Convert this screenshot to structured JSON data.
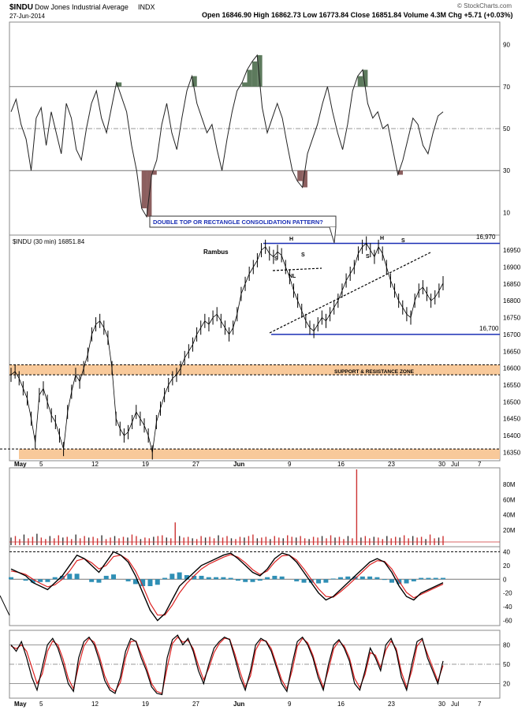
{
  "header": {
    "symbol": "$INDU",
    "name": "Dow Jones Industrial Average",
    "exchange": "INDX",
    "date": "27-Jun-2014",
    "ohlc": "Open 16846.90  High 16862.73  Low 16773.84  Close 16851.84  Volume 4.3M  Chg +5.71 (+0.03%)",
    "watermark": "© StockCharts.com",
    "price_label": "$INDU (30 min) 16851.84",
    "author": "Rambus"
  },
  "annotations": {
    "pattern_box": "DOUBLE TOP OR RECTANGLE CONSOLIDATION PATTERN?",
    "zone": "SUPPORT & RESISTANCE ZONE",
    "level_top": "16,970",
    "level_bottom": "16,700",
    "nl": "NL",
    "hs_letters": [
      "S",
      "H",
      "S",
      "S",
      "H",
      "S"
    ]
  },
  "x_axis": {
    "price_labels": [
      "May",
      "5",
      "12",
      "19",
      "27",
      "Jun",
      "9",
      "16",
      "23",
      "30",
      "Jul",
      "7"
    ],
    "bottom_labels": [
      "May",
      "5",
      "12",
      "19",
      "27",
      "Jun",
      "9",
      "16",
      "23",
      "30",
      "Jul",
      "7"
    ]
  },
  "chart_data": [
    {
      "type": "line",
      "panel": "rsi-top",
      "y_ticks": [
        "90",
        "70",
        "50",
        "30",
        "10"
      ],
      "ylim": [
        0,
        100
      ],
      "levels": [
        70,
        50,
        30
      ],
      "series": [
        {
          "values": [
            58,
            64,
            52,
            45,
            30,
            55,
            60,
            42,
            58,
            48,
            38,
            62,
            55,
            40,
            35,
            50,
            62,
            68,
            55,
            48,
            60,
            72,
            65,
            58,
            42,
            30,
            12,
            8,
            28,
            35,
            52,
            62,
            48,
            40,
            55,
            68,
            75,
            62,
            55,
            48,
            52,
            40,
            30,
            45,
            58,
            68,
            72,
            78,
            82,
            85,
            60,
            48,
            55,
            62,
            55,
            42,
            30,
            25,
            22,
            38,
            45,
            52,
            62,
            70,
            58,
            48,
            40,
            52,
            68,
            75,
            78,
            62,
            55,
            58,
            50,
            52,
            40,
            28,
            35,
            45,
            55,
            52,
            42,
            38,
            48,
            56,
            58
          ]
        }
      ]
    },
    {
      "type": "line",
      "panel": "price",
      "y_ticks": [
        "16950",
        "16900",
        "16850",
        "16800",
        "16750",
        "16700",
        "16650",
        "16600",
        "16550",
        "16500",
        "16450",
        "16400",
        "16350"
      ],
      "ylim": [
        16330,
        16990
      ],
      "series": [
        {
          "name": "$INDU (30 min)",
          "values": [
            16580,
            16590,
            16570,
            16540,
            16510,
            16450,
            16380,
            16520,
            16540,
            16500,
            16460,
            16440,
            16400,
            16360,
            16470,
            16530,
            16580,
            16560,
            16600,
            16640,
            16700,
            16730,
            16740,
            16720,
            16690,
            16600,
            16450,
            16420,
            16400,
            16410,
            16440,
            16470,
            16450,
            16430,
            16400,
            16350,
            16440,
            16480,
            16520,
            16550,
            16570,
            16580,
            16600,
            16630,
            16650,
            16670,
            16700,
            16720,
            16740,
            16730,
            16750,
            16760,
            16740,
            16720,
            16700,
            16720,
            16760,
            16820,
            16850,
            16880,
            16900,
            16920,
            16950,
            16960,
            16940,
            16930,
            16945,
            16935,
            16900,
            16870,
            16830,
            16800,
            16770,
            16740,
            16720,
            16710,
            16730,
            16750,
            16740,
            16760,
            16780,
            16800,
            16830,
            16860,
            16880,
            16900,
            16940,
            16960,
            16970,
            16950,
            16930,
            16960,
            16940,
            16900,
            16860,
            16830,
            16800,
            16780,
            16760,
            16750,
            16800,
            16830,
            16840,
            16820,
            16800,
            16810,
            16830,
            16852
          ]
        }
      ],
      "hlines": [
        16970,
        16700
      ],
      "zone_upper": [
        16580,
        16610
      ],
      "zone_lower": [
        16330,
        16360
      ]
    },
    {
      "type": "bar",
      "panel": "volume",
      "y_ticks": [
        "80M",
        "60M",
        "40M",
        "20M"
      ],
      "ylim": [
        0,
        100
      ],
      "values": [
        10,
        12,
        8,
        14,
        9,
        11,
        15,
        10,
        8,
        12,
        9,
        13,
        10,
        11,
        8,
        14,
        9,
        12,
        10,
        11,
        9,
        13,
        8,
        10,
        12,
        9,
        11,
        10,
        14,
        12,
        8,
        10,
        9,
        11,
        12,
        13,
        10,
        9,
        30,
        12,
        10,
        11,
        9,
        8,
        12,
        10,
        11,
        9,
        13,
        10,
        12,
        9,
        8,
        11,
        10,
        12,
        14,
        9,
        10,
        11,
        8,
        12,
        10,
        9,
        13,
        11,
        10,
        12,
        9,
        8,
        11,
        10,
        12,
        9,
        13,
        10,
        11,
        8,
        12,
        9,
        100,
        10,
        12,
        9,
        11,
        10,
        8,
        12,
        9,
        11,
        10,
        13,
        9,
        12,
        10,
        11,
        8,
        14,
        9,
        10,
        12
      ]
    },
    {
      "type": "line",
      "panel": "macd",
      "y_ticks": [
        "40",
        "20",
        "0",
        "-20",
        "-40",
        "-60"
      ],
      "ylim": [
        -65,
        45
      ],
      "levels": [
        40,
        0
      ],
      "series": [
        {
          "values": [
            15,
            10,
            5,
            -5,
            -10,
            -15,
            -5,
            5,
            20,
            35,
            30,
            20,
            10,
            25,
            40,
            35,
            25,
            5,
            -20,
            -45,
            -60,
            -50,
            -30,
            -10,
            0,
            10,
            20,
            25,
            30,
            35,
            38,
            30,
            20,
            10,
            5,
            15,
            30,
            38,
            35,
            25,
            10,
            -5,
            -20,
            -30,
            -25,
            -15,
            -5,
            5,
            15,
            25,
            30,
            25,
            10,
            -10,
            -25,
            -30,
            -20,
            -15,
            -10,
            -5
          ]
        },
        {
          "values": [
            12,
            10,
            7,
            0,
            -6,
            -11,
            -8,
            0,
            12,
            27,
            30,
            24,
            15,
            20,
            33,
            35,
            28,
            12,
            -10,
            -35,
            -52,
            -52,
            -38,
            -20,
            -6,
            5,
            15,
            22,
            27,
            32,
            36,
            32,
            24,
            14,
            7,
            12,
            25,
            34,
            35,
            28,
            15,
            0,
            -14,
            -25,
            -26,
            -18,
            -9,
            1,
            11,
            21,
            27,
            26,
            15,
            -3,
            -19,
            -27,
            -22,
            -17,
            -12,
            -7
          ]
        }
      ],
      "histogram": [
        3,
        0,
        -2,
        -5,
        -4,
        -4,
        3,
        5,
        8,
        8,
        0,
        -4,
        -5,
        5,
        7,
        0,
        -3,
        -7,
        -10,
        -10,
        -8,
        2,
        8,
        10,
        6,
        5,
        5,
        3,
        3,
        3,
        2,
        -2,
        -4,
        -4,
        -2,
        3,
        5,
        4,
        0,
        -3,
        -5,
        -5,
        -6,
        -5,
        1,
        3,
        4,
        4,
        4,
        4,
        3,
        -1,
        -5,
        -7,
        -6,
        -3,
        2,
        2,
        2,
        2
      ]
    },
    {
      "type": "line",
      "panel": "stochastic",
      "y_ticks": [
        "80",
        "50",
        "20"
      ],
      "ylim": [
        0,
        100
      ],
      "levels": [
        80,
        50,
        20
      ],
      "series": [
        {
          "values": [
            80,
            70,
            85,
            60,
            30,
            10,
            45,
            80,
            90,
            75,
            50,
            20,
            8,
            60,
            85,
            92,
            80,
            55,
            25,
            10,
            5,
            30,
            70,
            90,
            85,
            60,
            40,
            15,
            5,
            3,
            60,
            88,
            95,
            80,
            90,
            70,
            40,
            20,
            50,
            75,
            85,
            92,
            88,
            60,
            30,
            10,
            40,
            80,
            90,
            85,
            70,
            45,
            20,
            8,
            50,
            85,
            92,
            80,
            60,
            30,
            10,
            50,
            80,
            88,
            75,
            55,
            20,
            10,
            40,
            75,
            60,
            40,
            80,
            90,
            70,
            30,
            10,
            50,
            85,
            90,
            60,
            40,
            20,
            55
          ]
        },
        {
          "values": [
            78,
            74,
            80,
            70,
            45,
            20,
            35,
            70,
            86,
            80,
            58,
            28,
            12,
            48,
            78,
            90,
            84,
            62,
            32,
            14,
            8,
            22,
            60,
            85,
            86,
            66,
            45,
            20,
            8,
            5,
            45,
            82,
            92,
            84,
            87,
            74,
            48,
            26,
            44,
            68,
            82,
            90,
            89,
            66,
            38,
            15,
            32,
            72,
            87,
            86,
            74,
            50,
            26,
            12,
            40,
            78,
            90,
            83,
            64,
            36,
            14,
            42,
            74,
            86,
            78,
            60,
            28,
            14,
            34,
            68,
            64,
            45,
            72,
            86,
            74,
            38,
            14,
            40,
            78,
            88,
            66,
            45,
            24,
            48
          ]
        }
      ]
    }
  ]
}
